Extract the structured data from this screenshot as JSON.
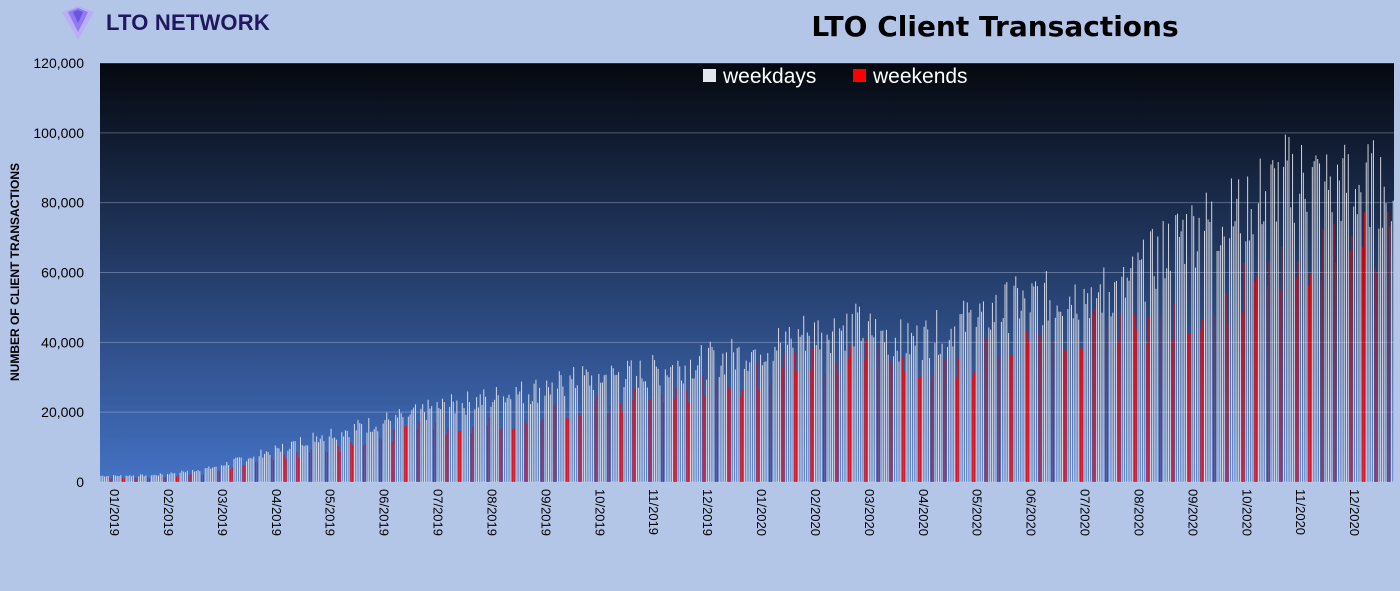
{
  "header": {
    "logo_text": "LTO NETWORK"
  },
  "colors": {
    "page_background": "#b4c6e7",
    "plot_top": "#05080f",
    "plot_bottom": "#4472c4",
    "weekday_bar": "#e4e7f0",
    "weekend_bar": "#ff0000",
    "logo_text": "#1f1760",
    "logo_mark": "#8e7cf0"
  },
  "chart_data": {
    "type": "bar",
    "title": "LTO Client Transactions",
    "xlabel": "",
    "ylabel": "NUMBER OF CLIENT TRANSACTIONS",
    "ylim": [
      0,
      120000
    ],
    "yticks": [
      0,
      20000,
      40000,
      60000,
      80000,
      100000,
      120000
    ],
    "ytick_labels": [
      "0",
      "20,000",
      "40,000",
      "60,000",
      "80,000",
      "100,000",
      "120,000"
    ],
    "grid": true,
    "legend_position": "top-center",
    "x_tick_labels": [
      "01/2019",
      "02/2019",
      "03/2019",
      "04/2019",
      "05/2019",
      "06/2019",
      "07/2019",
      "08/2019",
      "09/2019",
      "10/2019",
      "11/2019",
      "12/2019",
      "01/2020",
      "02/2020",
      "03/2020",
      "04/2020",
      "05/2020",
      "06/2020",
      "07/2020",
      "08/2020",
      "09/2020",
      "10/2020",
      "11/2020",
      "12/2020"
    ],
    "series": [
      {
        "name": "weekdays",
        "values": [
          1800,
          2000,
          4000,
          8500,
          13500,
          17000,
          21000,
          24000,
          27000,
          30500,
          32000,
          35000,
          38000,
          44000,
          46000,
          41000,
          47000,
          53000,
          55000,
          57000,
          73000,
          79000,
          90000,
          88000
        ]
      },
      {
        "name": "weekends",
        "values": [
          1200,
          1300,
          2500,
          6000,
          9000,
          12000,
          16000,
          17000,
          19000,
          22000,
          25000,
          28000,
          30000,
          36000,
          38000,
          35000,
          36000,
          40000,
          44000,
          46000,
          48000,
          55000,
          62000,
          70000
        ]
      }
    ]
  }
}
